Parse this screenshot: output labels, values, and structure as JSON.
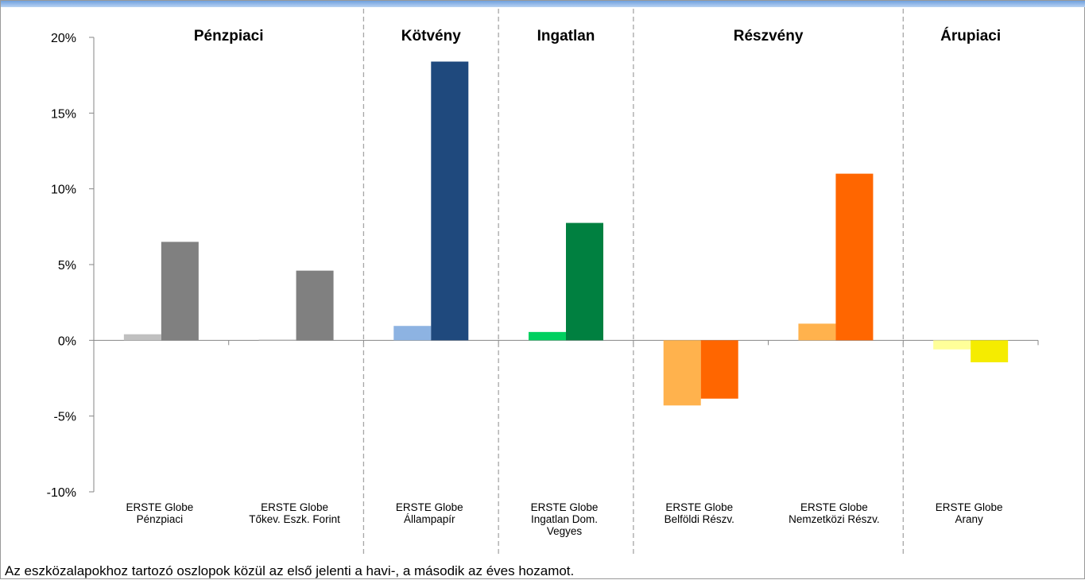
{
  "chart_data": {
    "type": "bar",
    "ylim": [
      -10,
      20
    ],
    "yticks": [
      -10,
      -5,
      0,
      5,
      10,
      15,
      20
    ],
    "ytick_labels": [
      "-10%",
      "-5%",
      "0%",
      "5%",
      "10%",
      "15%",
      "20%"
    ],
    "grid": false,
    "sections": [
      {
        "label": "Pénzpiaci",
        "categories": [
          0,
          1
        ]
      },
      {
        "label": "Kötvény",
        "categories": [
          2
        ]
      },
      {
        "label": "Ingatlan",
        "categories": [
          3
        ]
      },
      {
        "label": "Részvény",
        "categories": [
          4,
          5
        ]
      },
      {
        "label": "Árupiaci",
        "categories": [
          6
        ]
      }
    ],
    "categories": [
      {
        "label_lines": [
          "ERSTE Globe",
          "Pénzpiaci"
        ],
        "monthly": 0.4,
        "annual": 6.5,
        "monthly_color": "#c0c0c0",
        "annual_color": "#808080"
      },
      {
        "label_lines": [
          "ERSTE Globe",
          "Tőkev. Eszk. Forint"
        ],
        "monthly": 0.05,
        "annual": 4.6,
        "monthly_color": "#c0c0c0",
        "annual_color": "#808080"
      },
      {
        "label_lines": [
          "ERSTE Globe",
          "Állampapír"
        ],
        "monthly": 0.95,
        "annual": 18.4,
        "monthly_color": "#8db3e2",
        "annual_color": "#1f497d"
      },
      {
        "label_lines": [
          "ERSTE Globe",
          "Ingatlan Dom.",
          "Vegyes"
        ],
        "monthly": 0.55,
        "annual": 7.75,
        "monthly_color": "#00d060",
        "annual_color": "#008040"
      },
      {
        "label_lines": [
          "ERSTE Globe",
          "Belföldi Részv."
        ],
        "monthly": -4.3,
        "annual": -3.85,
        "monthly_color": "#ffb24d",
        "annual_color": "#ff6600"
      },
      {
        "label_lines": [
          "ERSTE Globe",
          "Nemzetközi Részv."
        ],
        "monthly": 1.1,
        "annual": 11.0,
        "monthly_color": "#ffb24d",
        "annual_color": "#ff6600"
      },
      {
        "label_lines": [
          "ERSTE Globe",
          "Arany"
        ],
        "monthly": -0.6,
        "annual": -1.45,
        "monthly_color": "#ffff99",
        "annual_color": "#f5ec00"
      }
    ]
  },
  "footnote": "Az eszközalapokhoz tartozó oszlopok közül az első jelenti a havi-, a második az éves hozamot."
}
